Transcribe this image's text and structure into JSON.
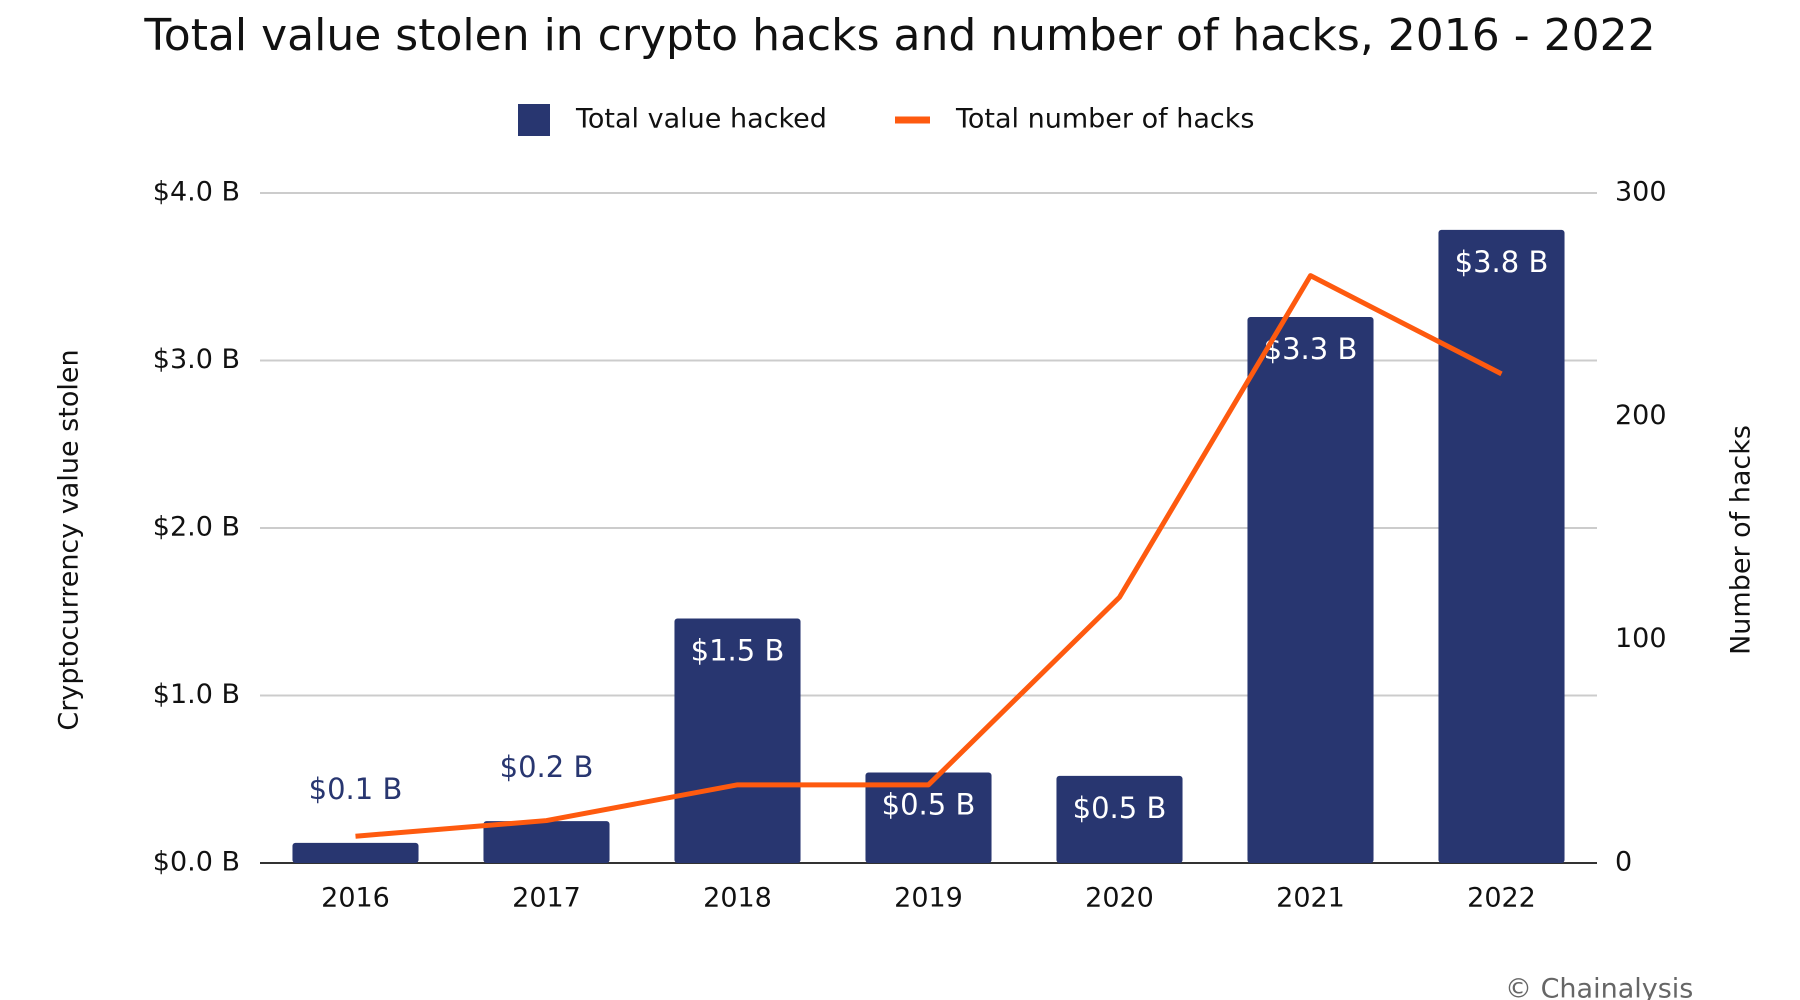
{
  "chart_data": {
    "type": "bar",
    "title": "Total value stolen in crypto hacks and number of hacks, 2016 - 2022",
    "y_label": "Cryptocurrency value stolen",
    "y2_label": "Number of hacks",
    "categories": [
      "2016",
      "2017",
      "2018",
      "2019",
      "2020",
      "2021",
      "2022"
    ],
    "series": [
      {
        "name": "Total value hacked",
        "type": "bar",
        "color": "#283670",
        "values": [
          0.12,
          0.25,
          1.46,
          0.54,
          0.52,
          3.26,
          3.78
        ],
        "value_labels": [
          "$0.1 B",
          "$0.2 B",
          "$1.5 B",
          "$0.5 B",
          "$0.5 B",
          "$3.3 B",
          "$3.8 B"
        ]
      },
      {
        "name": "Total number of hacks",
        "type": "line",
        "axis": "y2",
        "color": "#fe5a0f",
        "values": [
          12,
          19,
          35,
          35,
          119,
          263,
          219
        ]
      }
    ],
    "ylim": [
      0,
      4
    ],
    "yticks": [
      {
        "value": 0,
        "label": "$0.0 B"
      },
      {
        "value": 1,
        "label": "$1.0 B"
      },
      {
        "value": 2,
        "label": "$2.0 B"
      },
      {
        "value": 3,
        "label": "$3.0 B"
      },
      {
        "value": 4,
        "label": "$4.0 B"
      }
    ],
    "y2lim": [
      0,
      300
    ],
    "y2ticks": [
      0,
      100,
      200,
      300
    ],
    "grid": true,
    "legend": "top",
    "source": "© Chainalysis"
  }
}
